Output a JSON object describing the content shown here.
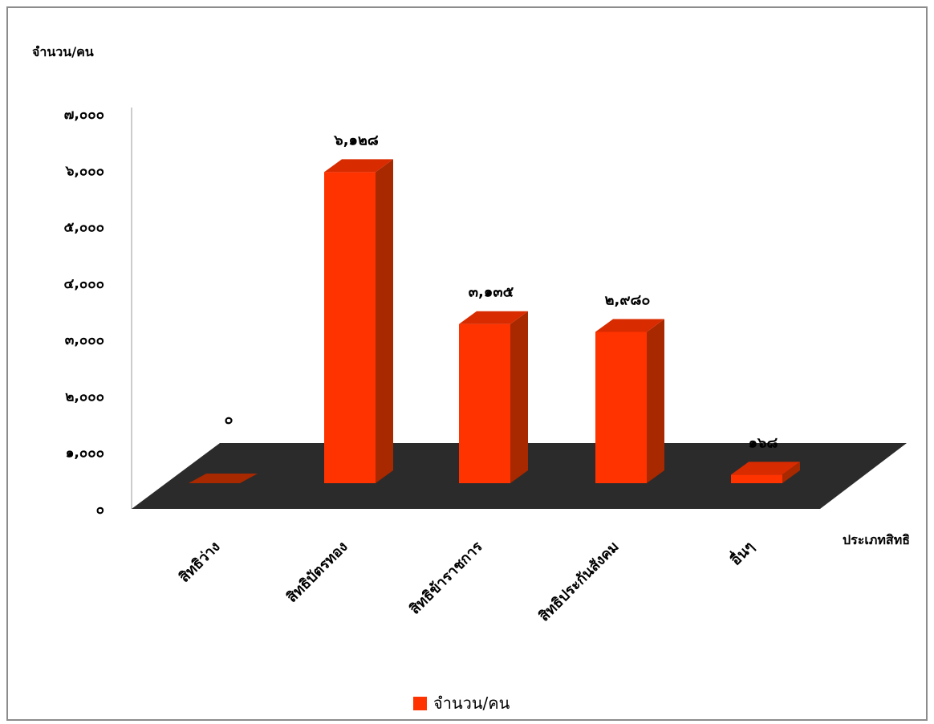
{
  "chart_data": {
    "type": "bar",
    "style": "3d-column",
    "ylabel": "จำนวน/คน",
    "xlabel": "ประเภทสิทธิ",
    "ylim": [
      0,
      7000
    ],
    "y_ticks": [
      "๐",
      "๑,๐๐๐",
      "๒,๐๐๐",
      "๓,๐๐๐",
      "๔,๐๐๐",
      "๕,๐๐๐",
      "๖,๐๐๐",
      "๗,๐๐๐"
    ],
    "categories": [
      "สิทธิว่าง",
      "สิทธิบัตรทอง",
      "สิทธิข้าราชการ",
      "สิทธิประกันสังคม",
      "อื่นๆ"
    ],
    "values": [
      0,
      6128,
      3135,
      2980,
      168
    ],
    "data_labels": [
      "๐",
      "๖,๑๒๘",
      "๓,๑๓๕",
      "๒,๙๘๐",
      "๑๖๘"
    ],
    "series": [
      {
        "name": "จำนวน/คน",
        "values": [
          0,
          6128,
          3135,
          2980,
          168
        ]
      }
    ],
    "legend": "bottom",
    "grid": false,
    "colors": {
      "bar_front": "#ff3300",
      "bar_side": "#a82800",
      "bar_top": "#d92b00",
      "floor": "#2b2b2b",
      "axis": "#999999"
    }
  }
}
